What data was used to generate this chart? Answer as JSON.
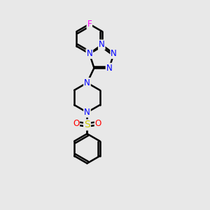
{
  "background_color": "#e8e8e8",
  "bond_color": "#000000",
  "bond_width": 1.8,
  "atom_colors": {
    "N": "#0000ff",
    "O": "#ff0000",
    "S": "#cccc00",
    "F": "#ff00ff",
    "C": "#000000"
  },
  "font_size_atom": 8.5
}
